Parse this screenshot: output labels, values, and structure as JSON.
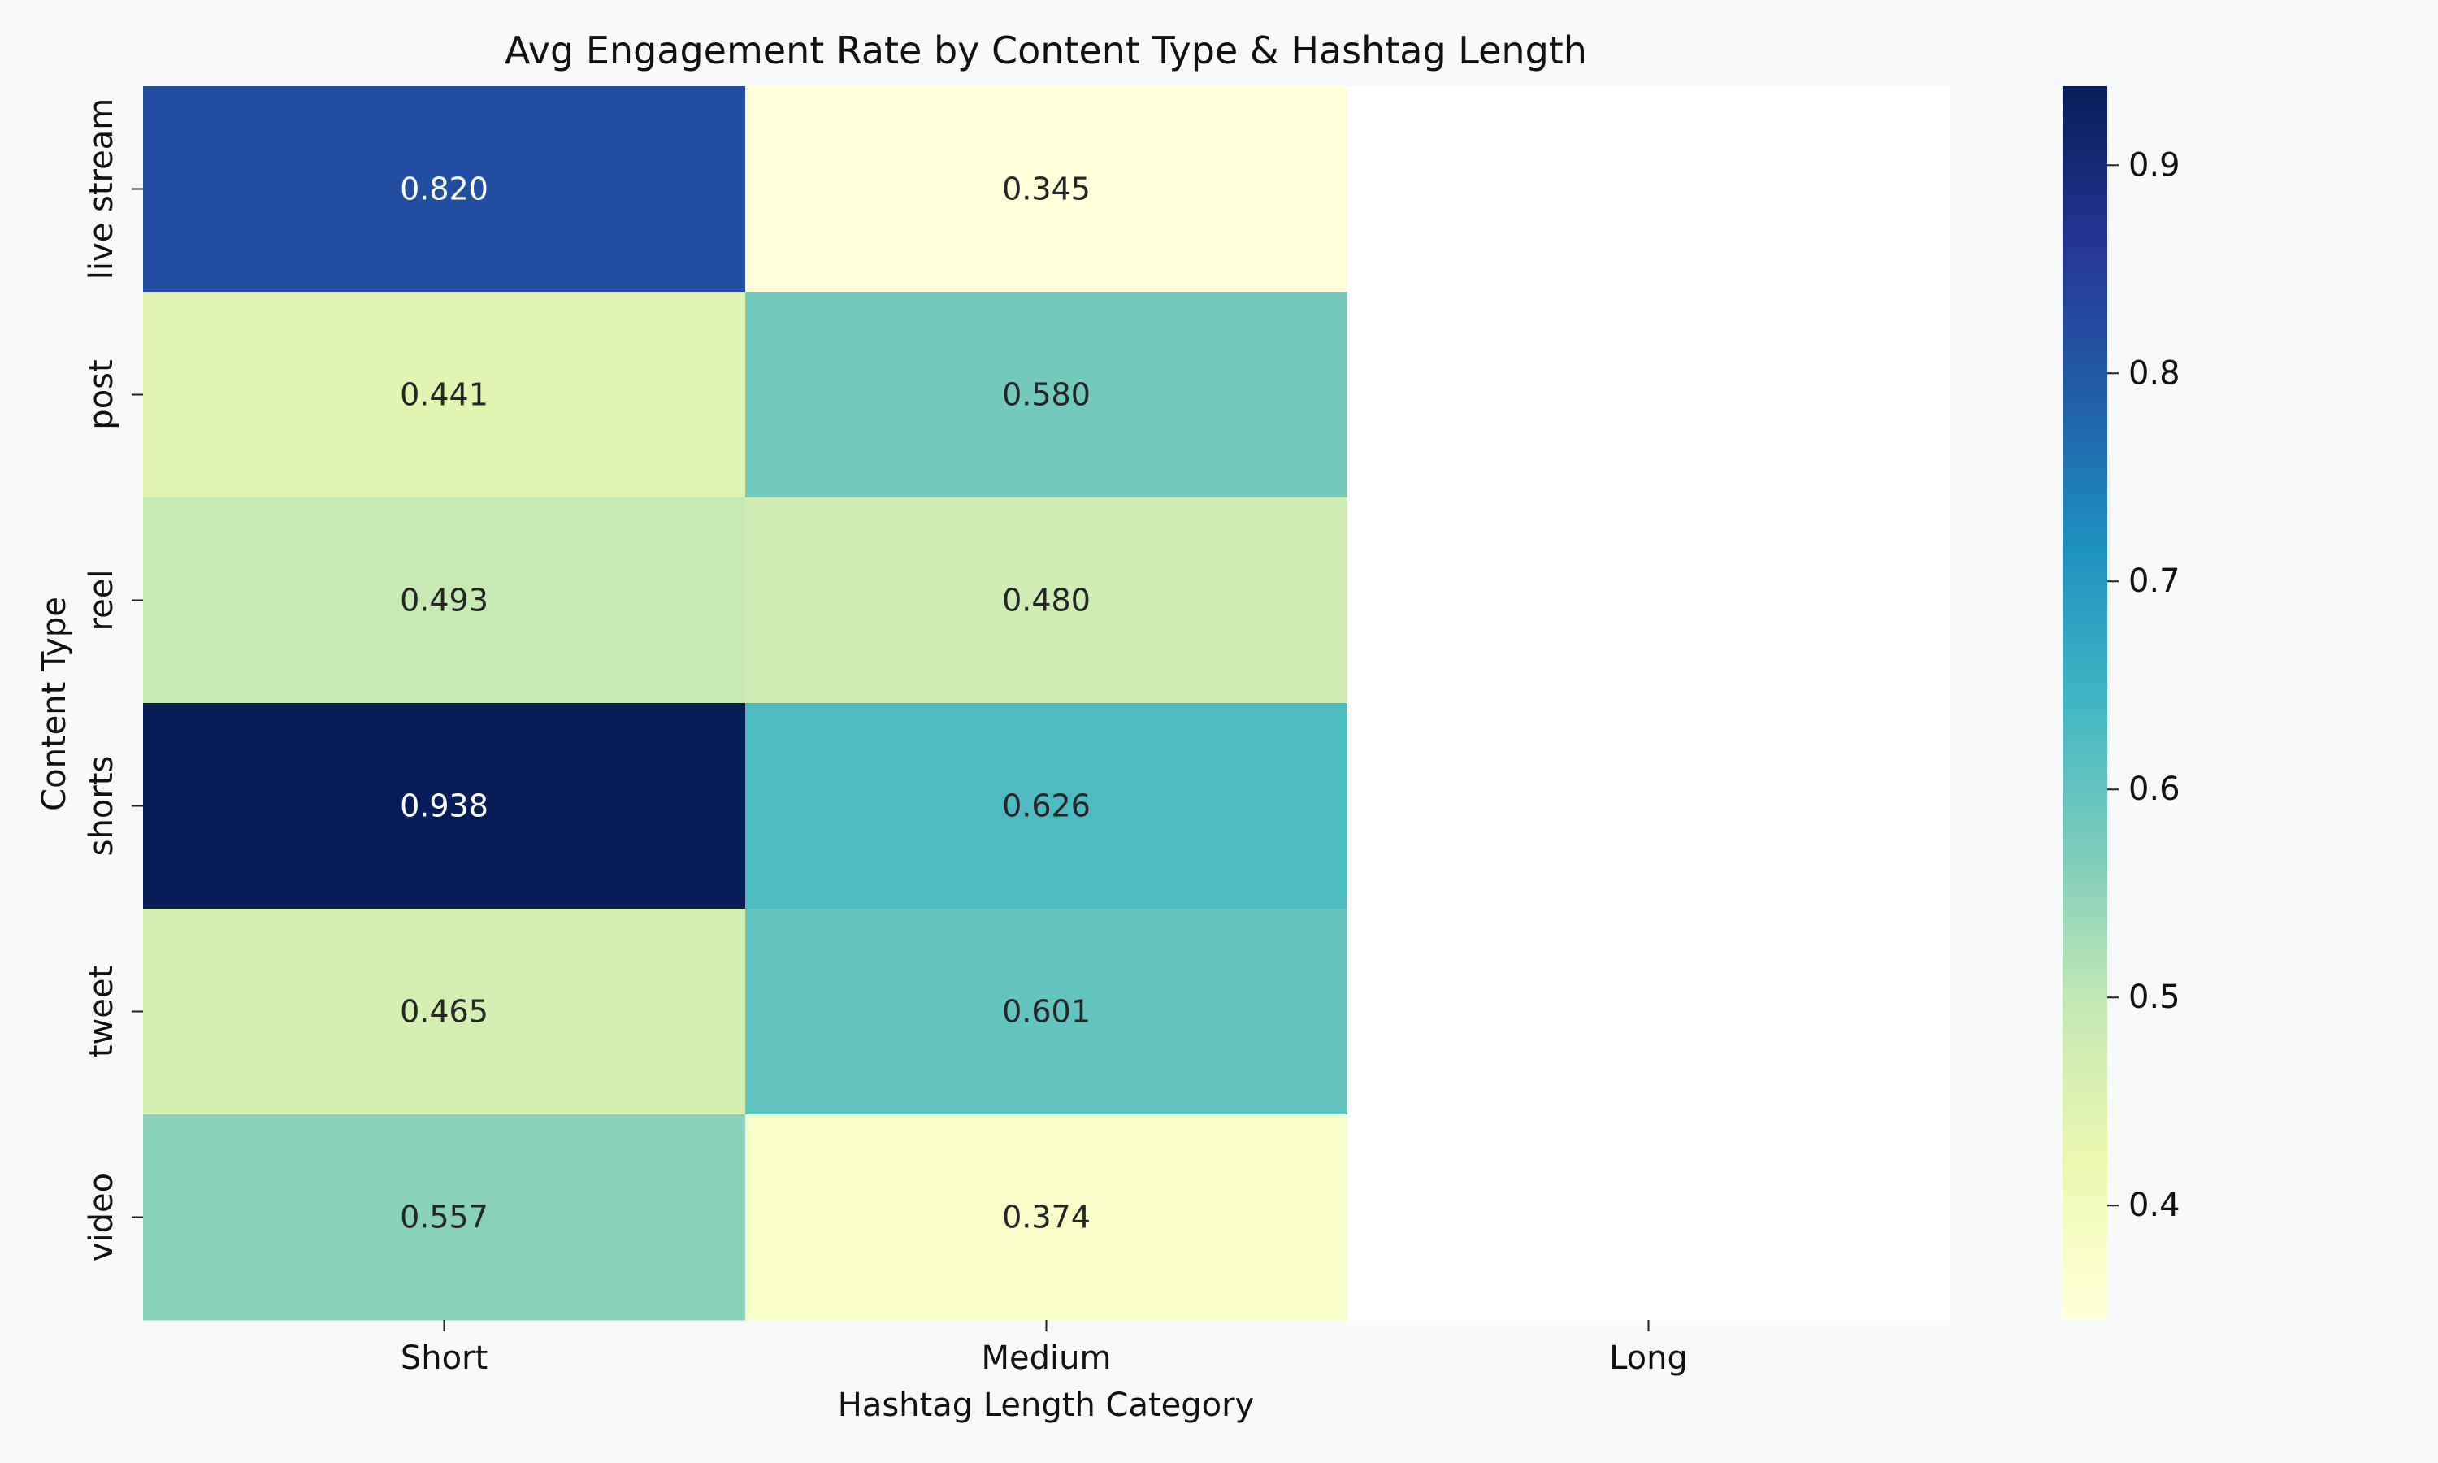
{
  "chart_data": {
    "type": "heatmap",
    "title": "Avg Engagement Rate by Content Type & Hashtag Length",
    "xlabel": "Hashtag Length Category",
    "ylabel": "Content Type",
    "x_categories": [
      "Short",
      "Medium",
      "Long"
    ],
    "y_categories": [
      "live stream",
      "post",
      "reel",
      "shorts",
      "tweet",
      "video"
    ],
    "values": [
      [
        0.82,
        0.345,
        null
      ],
      [
        0.441,
        0.58,
        null
      ],
      [
        0.493,
        0.48,
        null
      ],
      [
        0.938,
        0.626,
        null
      ],
      [
        0.465,
        0.601,
        null
      ],
      [
        0.557,
        0.374,
        null
      ]
    ],
    "cell_labels": [
      [
        "0.820",
        "0.345",
        ""
      ],
      [
        "0.441",
        "0.580",
        ""
      ],
      [
        "0.493",
        "0.480",
        ""
      ],
      [
        "0.938",
        "0.626",
        ""
      ],
      [
        "0.465",
        "0.601",
        ""
      ],
      [
        "0.557",
        "0.374",
        ""
      ]
    ],
    "colormap": "YlGnBu",
    "colorbar": {
      "vmin": 0.345,
      "vmax": 0.938,
      "ticks": [
        0.4,
        0.5,
        0.6,
        0.7,
        0.8,
        0.9
      ],
      "tick_labels": [
        "0.4",
        "0.5",
        "0.6",
        "0.7",
        "0.8",
        "0.9"
      ]
    },
    "colormap_stops": [
      "#ffffd9",
      "#edf8b1",
      "#c7e9b4",
      "#7fcdbb",
      "#41b6c4",
      "#1d91c0",
      "#225ea8",
      "#253494",
      "#081d58"
    ],
    "missing_color": "#ffffff"
  }
}
